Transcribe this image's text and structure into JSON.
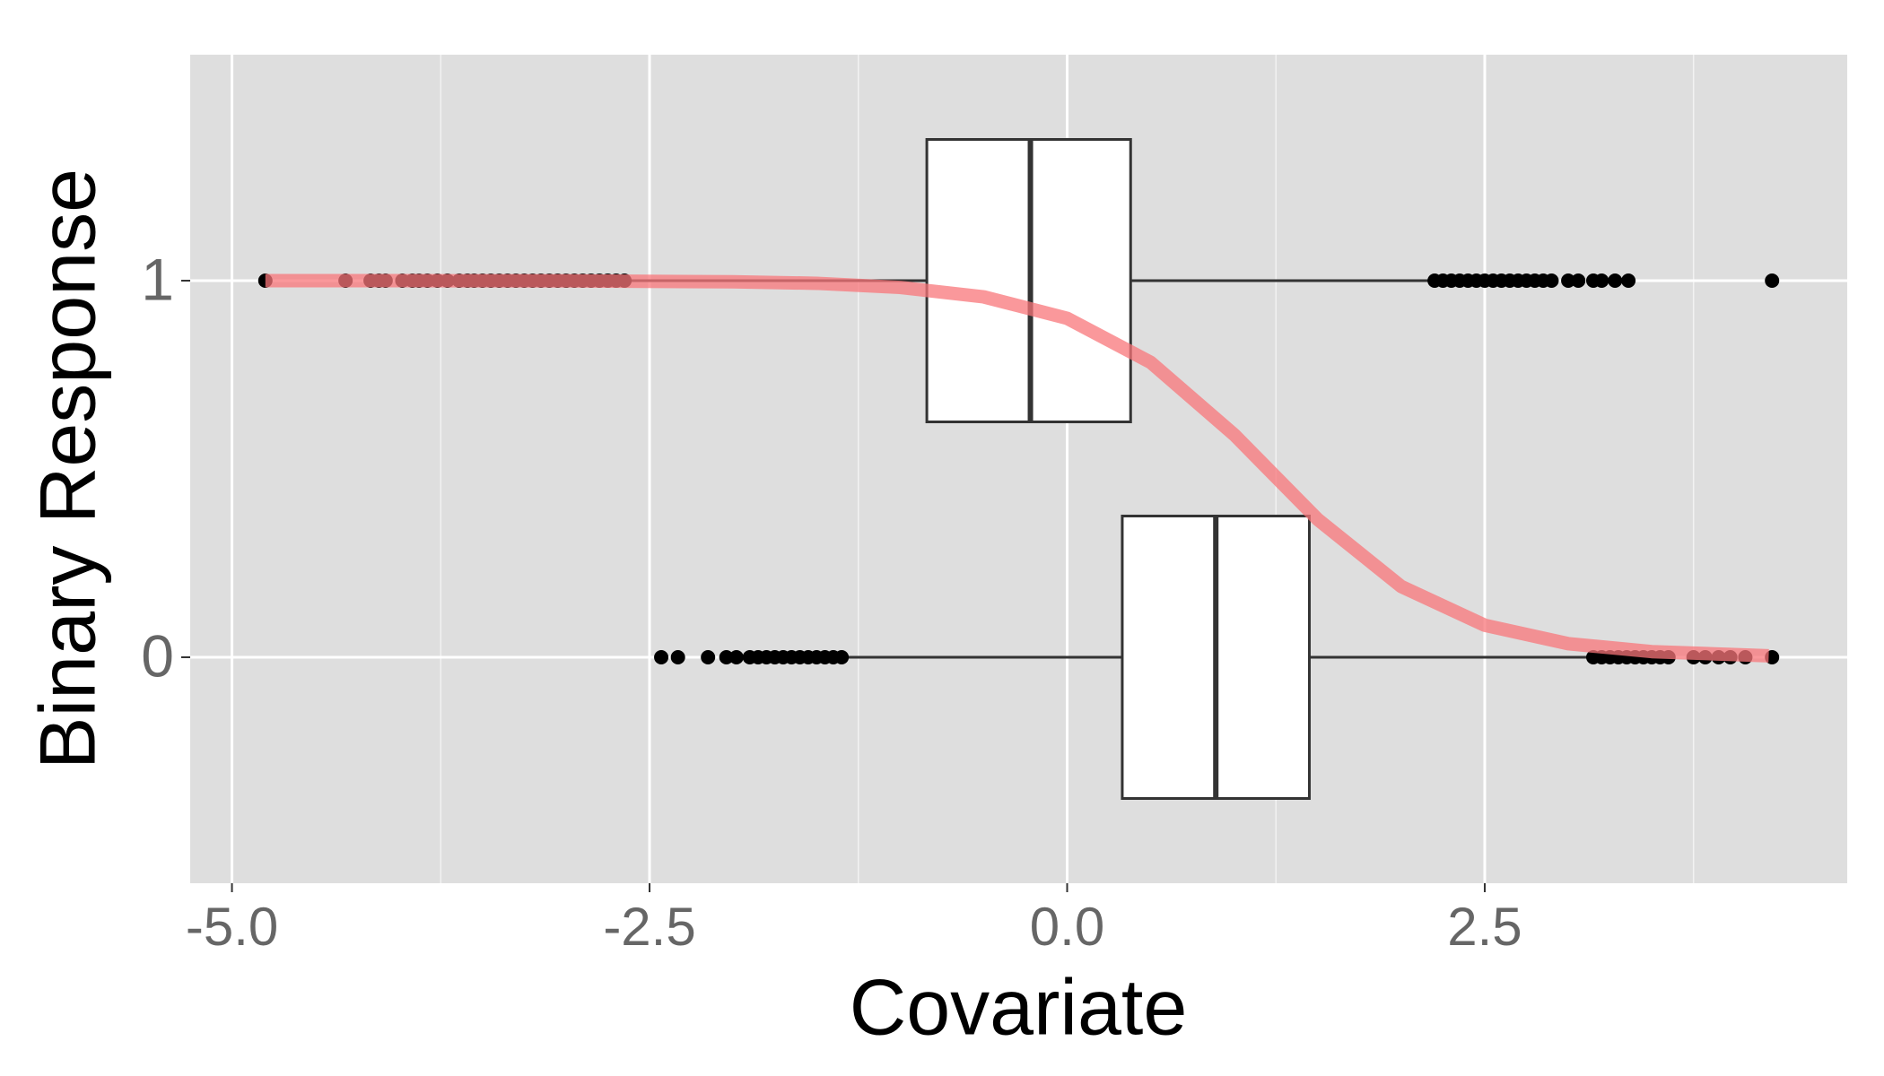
{
  "chart_data": {
    "type": "boxplot",
    "xlabel": "Covariate",
    "ylabel": "Binary Response",
    "xlim": [
      -5.25,
      4.67
    ],
    "ylim": [
      -0.6,
      1.6
    ],
    "xticks": [
      {
        "value": -5,
        "label": "-5.0"
      },
      {
        "value": -2.5,
        "label": "-2.5"
      },
      {
        "value": 0,
        "label": "0.0"
      },
      {
        "value": 2.5,
        "label": "2.5"
      }
    ],
    "x_minor_ticks": [
      -3.75,
      -1.25,
      1.25,
      3.75
    ],
    "yticks": [
      0,
      1
    ],
    "grid": true,
    "box_fill": "#ffffff",
    "box_stroke": "#333333",
    "point_color": "#000000",
    "boxes": [
      {
        "y": 1,
        "whislo": -2.62,
        "q1": -0.84,
        "med": -0.22,
        "q3": 0.38,
        "whishi": 2.17,
        "outliers": [
          -4.8,
          -4.32,
          -4.17,
          -4.12,
          -4.08,
          -3.98,
          -3.92,
          -3.88,
          -3.83,
          -3.77,
          -3.71,
          -3.64,
          -3.59,
          -3.55,
          -3.5,
          -3.45,
          -3.4,
          -3.35,
          -3.3,
          -3.25,
          -3.2,
          -3.15,
          -3.1,
          -3.05,
          -3.0,
          -2.95,
          -2.9,
          -2.85,
          -2.8,
          -2.75,
          -2.7,
          -2.65,
          2.2,
          2.25,
          2.3,
          2.35,
          2.4,
          2.45,
          2.5,
          2.55,
          2.6,
          2.65,
          2.7,
          2.75,
          2.8,
          2.85,
          2.9,
          3.0,
          3.06,
          3.15,
          3.2,
          3.28,
          3.36,
          4.22
        ]
      },
      {
        "y": 0,
        "whislo": -1.32,
        "q1": 0.33,
        "med": 0.89,
        "q3": 1.45,
        "whishi": 3.11,
        "outliers": [
          -2.43,
          -2.33,
          -2.15,
          -2.04,
          -1.98,
          -1.9,
          -1.85,
          -1.8,
          -1.75,
          -1.7,
          -1.65,
          -1.6,
          -1.55,
          -1.5,
          -1.45,
          -1.4,
          -1.35,
          3.15,
          3.2,
          3.25,
          3.3,
          3.35,
          3.4,
          3.45,
          3.5,
          3.55,
          3.6,
          3.75,
          3.82,
          3.9,
          3.97,
          4.06,
          4.22
        ]
      }
    ],
    "curve": {
      "color": "#f8767a",
      "x": [
        -4.8,
        -4,
        -3,
        -2,
        -1.5,
        -1,
        -0.5,
        0,
        0.5,
        1,
        1.5,
        2,
        2.5,
        3,
        3.5,
        4.2
      ],
      "y": [
        1.0,
        1.0,
        0.9995,
        0.997,
        0.993,
        0.982,
        0.957,
        0.9,
        0.783,
        0.591,
        0.366,
        0.188,
        0.085,
        0.036,
        0.015,
        0.004
      ]
    }
  }
}
